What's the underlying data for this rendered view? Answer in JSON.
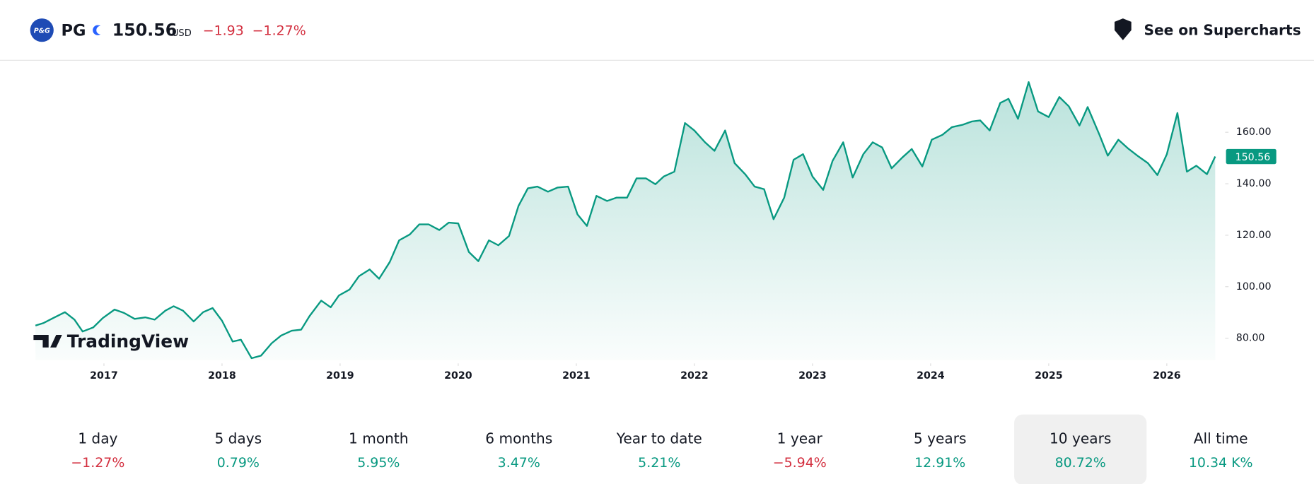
{
  "header": {
    "logo": "P&G",
    "symbol": "PG",
    "price": "150.56",
    "currency": "USD",
    "change": "−1.93",
    "change_percent": "−1.27%",
    "action": "See on Supercharts"
  },
  "chart_data": {
    "type": "area",
    "color": "#089981",
    "watermark": "TradingView",
    "last_price": 150.56,
    "x": [
      2016.42,
      2016.49,
      2016.57,
      2016.67,
      2016.75,
      2016.82,
      2016.91,
      2016.99,
      2017.09,
      2017.17,
      2017.26,
      2017.35,
      2017.43,
      2017.52,
      2017.59,
      2017.67,
      2017.76,
      2017.84,
      2017.92,
      2018.0,
      2018.09,
      2018.16,
      2018.25,
      2018.33,
      2018.42,
      2018.5,
      2018.59,
      2018.67,
      2018.74,
      2018.84,
      2018.92,
      2018.99,
      2019.08,
      2019.16,
      2019.25,
      2019.33,
      2019.42,
      2019.5,
      2019.59,
      2019.67,
      2019.75,
      2019.84,
      2019.92,
      2020.0,
      2020.09,
      2020.17,
      2020.26,
      2020.34,
      2020.43,
      2020.51,
      2020.59,
      2020.67,
      2020.76,
      2020.84,
      2020.93,
      2021.01,
      2021.09,
      2021.17,
      2021.26,
      2021.34,
      2021.43,
      2021.51,
      2021.59,
      2021.67,
      2021.74,
      2021.83,
      2021.92,
      2022.0,
      2022.09,
      2022.17,
      2022.26,
      2022.34,
      2022.43,
      2022.51,
      2022.59,
      2022.67,
      2022.76,
      2022.84,
      2022.92,
      2023.0,
      2023.09,
      2023.17,
      2023.26,
      2023.34,
      2023.43,
      2023.51,
      2023.59,
      2023.67,
      2023.76,
      2023.84,
      2023.93,
      2024.01,
      2024.1,
      2024.18,
      2024.27,
      2024.35,
      2024.42,
      2024.5,
      2024.59,
      2024.66,
      2024.74,
      2024.83,
      2024.91,
      2025.0,
      2025.09,
      2025.17,
      2025.26,
      2025.33,
      2025.43,
      2025.5,
      2025.59,
      2025.67,
      2025.76,
      2025.84,
      2025.92,
      2026.0,
      2026.09,
      2026.17,
      2026.25,
      2026.34,
      2026.41
    ],
    "values": [
      84.9,
      85.9,
      87.8,
      90.1,
      87.2,
      82.6,
      84.2,
      87.8,
      91.1,
      89.8,
      87.5,
      88.1,
      87.2,
      90.7,
      92.4,
      90.7,
      86.5,
      90.1,
      91.7,
      86.8,
      78.7,
      79.4,
      72.2,
      73.2,
      78.0,
      81.0,
      82.9,
      83.3,
      88.5,
      94.6,
      92.0,
      96.6,
      98.9,
      104.1,
      106.7,
      103.1,
      109.6,
      118.0,
      120.3,
      124.2,
      124.2,
      122.0,
      124.9,
      124.6,
      113.5,
      109.9,
      118.0,
      116.1,
      119.7,
      131.4,
      138.2,
      138.9,
      136.9,
      138.5,
      138.9,
      128.1,
      123.6,
      135.3,
      133.3,
      134.6,
      134.6,
      142.1,
      142.1,
      139.8,
      142.8,
      144.7,
      163.6,
      160.7,
      156.1,
      152.8,
      160.7,
      148.0,
      143.7,
      138.9,
      137.9,
      126.2,
      134.6,
      149.3,
      151.5,
      142.8,
      137.6,
      148.9,
      156.1,
      142.4,
      151.5,
      156.1,
      154.1,
      146.0,
      150.2,
      153.5,
      146.7,
      157.1,
      159.0,
      162.0,
      162.9,
      164.2,
      164.6,
      160.7,
      171.4,
      173.0,
      165.2,
      179.5,
      168.1,
      165.9,
      173.7,
      170.1,
      162.6,
      169.8,
      159.0,
      150.9,
      157.1,
      153.8,
      150.6,
      148.0,
      143.4,
      151.5,
      167.5,
      144.7,
      147.0,
      143.7,
      150.56
    ],
    "xlim": [
      2016.12,
      2026.48
    ],
    "xticks": [
      2017,
      2018,
      2019,
      2020,
      2021,
      2022,
      2023,
      2024,
      2025,
      2026
    ],
    "ylim": [
      71.5,
      187.3
    ],
    "yticks": [
      {
        "value": 80,
        "label": "80.00"
      },
      {
        "value": 100,
        "label": "100.00"
      },
      {
        "value": 120,
        "label": "120.00"
      },
      {
        "value": 140,
        "label": "140.00"
      },
      {
        "value": 160,
        "label": "160.00"
      }
    ]
  },
  "periods": {
    "selected": 7,
    "items": [
      {
        "label": "1 day",
        "change": "−1.27%"
      },
      {
        "label": "5 days",
        "change": "0.79%"
      },
      {
        "label": "1 month",
        "change": "5.95%"
      },
      {
        "label": "6 months",
        "change": "3.47%"
      },
      {
        "label": "Year to date",
        "change": "5.21%"
      },
      {
        "label": "1 year",
        "change": "−5.94%"
      },
      {
        "label": "5 years",
        "change": "12.91%"
      },
      {
        "label": "10 years",
        "change": "80.72%"
      },
      {
        "label": "All time",
        "change": "10.34 K%"
      }
    ]
  }
}
